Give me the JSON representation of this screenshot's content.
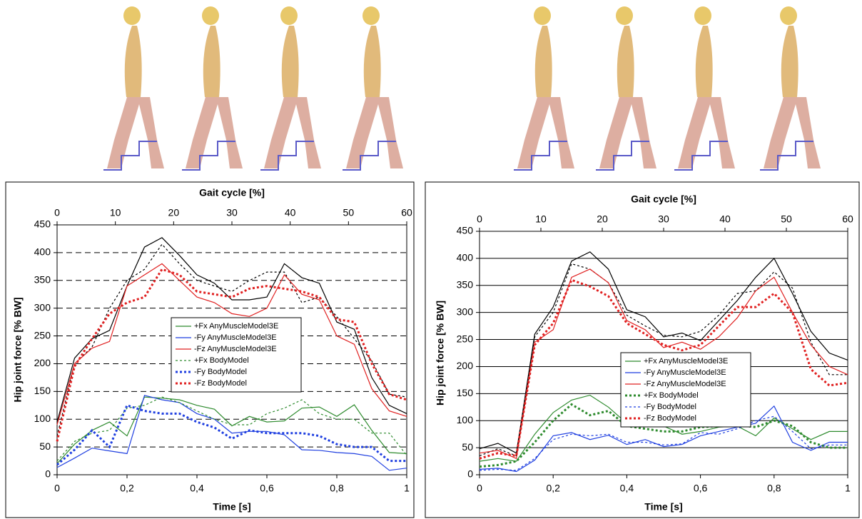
{
  "chart_data": [
    {
      "type": "line",
      "title": "Gait cycle [%]",
      "xlabel": "Time [s]",
      "ylabel": "Hip joint force [% BW]",
      "x": [
        0,
        0.05,
        0.1,
        0.15,
        0.2,
        0.25,
        0.3,
        0.35,
        0.4,
        0.45,
        0.5,
        0.55,
        0.6,
        0.65,
        0.7,
        0.75,
        0.8,
        0.85,
        0.9,
        0.95,
        1
      ],
      "xlim": [
        0,
        1
      ],
      "xticks": [
        0,
        {
          "value": 0.2,
          "label": "0,2"
        },
        {
          "value": 0.4,
          "label": "0,4"
        },
        {
          "value": 0.6,
          "label": "0,6"
        },
        {
          "value": 0.8,
          "label": "0,8"
        },
        1
      ],
      "x2lim": [
        0,
        60
      ],
      "x2ticks": [
        0,
        10,
        20,
        30,
        40,
        50,
        60
      ],
      "ylim": [
        0,
        450
      ],
      "yticks": [
        0,
        50,
        100,
        150,
        200,
        250,
        300,
        350,
        400,
        450
      ],
      "grid": "dashed",
      "legend": "center",
      "series": [
        {
          "color": "#000000",
          "dash": "solid",
          "values": [
            95,
            210,
            245,
            260,
            340,
            410,
            427,
            395,
            360,
            345,
            315,
            315,
            320,
            380,
            355,
            345,
            275,
            262,
            175,
            125,
            110
          ]
        },
        {
          "color": "#000000",
          "dash": "dotted",
          "values": [
            70,
            200,
            230,
            300,
            350,
            370,
            415,
            380,
            350,
            340,
            330,
            350,
            365,
            365,
            310,
            320,
            285,
            245,
            205,
            145,
            140
          ]
        },
        {
          "name": "+Fx AnyMuscleModel3E",
          "color": "#2e8b2e",
          "dash": "solid",
          "values": [
            20,
            55,
            80,
            95,
            70,
            140,
            138,
            135,
            125,
            118,
            88,
            105,
            95,
            97,
            120,
            122,
            105,
            126,
            80,
            40,
            38
          ]
        },
        {
          "name": "-Fy AnyMuscleModel3E",
          "color": "#1f3fe0",
          "dash": "solid",
          "values": [
            13,
            30,
            48,
            43,
            38,
            143,
            135,
            130,
            110,
            100,
            75,
            78,
            78,
            72,
            45,
            44,
            40,
            38,
            33,
            8,
            12
          ]
        },
        {
          "name": "-Fz AnyMuscleModel3E",
          "color": "#e02020",
          "dash": "solid",
          "values": [
            90,
            200,
            228,
            240,
            340,
            360,
            380,
            350,
            320,
            310,
            290,
            285,
            300,
            360,
            325,
            315,
            250,
            235,
            155,
            115,
            105
          ]
        },
        {
          "name": "+Fx BodyModel",
          "color": "#2e8b2e",
          "dash": "dotted",
          "values": [
            25,
            60,
            75,
            80,
            120,
            125,
            140,
            130,
            115,
            100,
            90,
            90,
            110,
            120,
            135,
            110,
            100,
            100,
            75,
            75,
            35
          ]
        },
        {
          "name": "-Fy BodyModel",
          "color": "#1f3fe0",
          "dash": "bold-dotted",
          "values": [
            18,
            45,
            80,
            50,
            125,
            115,
            110,
            110,
            95,
            85,
            65,
            80,
            75,
            75,
            75,
            70,
            55,
            50,
            50,
            25,
            25
          ]
        },
        {
          "name": "-Fz BodyModel",
          "color": "#e02020",
          "dash": "bold-dotted",
          "values": [
            60,
            195,
            245,
            290,
            310,
            320,
            370,
            360,
            330,
            325,
            320,
            335,
            340,
            335,
            330,
            320,
            280,
            275,
            200,
            145,
            135
          ]
        }
      ]
    },
    {
      "type": "line",
      "title": "Gait cycle [%]",
      "xlabel": "Time [s]",
      "ylabel": "Hip joint force [% BW]",
      "x": [
        0,
        0.05,
        0.1,
        0.15,
        0.2,
        0.25,
        0.3,
        0.35,
        0.4,
        0.45,
        0.5,
        0.55,
        0.6,
        0.65,
        0.7,
        0.75,
        0.8,
        0.85,
        0.9,
        0.95,
        1
      ],
      "xlim": [
        0,
        1
      ],
      "xticks": [
        0,
        {
          "value": 0.2,
          "label": "0,2"
        },
        {
          "value": 0.4,
          "label": "0,4"
        },
        {
          "value": 0.6,
          "label": "0,6"
        },
        {
          "value": 0.8,
          "label": "0,8"
        },
        1
      ],
      "x2lim": [
        0,
        60
      ],
      "x2ticks": [
        0,
        10,
        20,
        30,
        40,
        50,
        60
      ],
      "ylim": [
        0,
        450
      ],
      "yticks": [
        0,
        50,
        100,
        150,
        200,
        250,
        300,
        350,
        400,
        450
      ],
      "grid": "solid",
      "legend": "lower-right",
      "series": [
        {
          "color": "#000000",
          "dash": "solid",
          "values": [
            48,
            58,
            40,
            260,
            310,
            395,
            412,
            380,
            305,
            292,
            255,
            262,
            248,
            285,
            322,
            365,
            400,
            335,
            265,
            225,
            212
          ]
        },
        {
          "color": "#000000",
          "dash": "dotted",
          "values": [
            35,
            48,
            35,
            255,
            300,
            390,
            380,
            355,
            295,
            275,
            258,
            255,
            265,
            295,
            335,
            340,
            375,
            345,
            245,
            185,
            185
          ]
        },
        {
          "name": "+Fx AnyMuscleModel3E",
          "color": "#2e8b2e",
          "dash": "solid",
          "values": [
            25,
            30,
            25,
            75,
            115,
            138,
            147,
            125,
            95,
            92,
            90,
            75,
            80,
            88,
            90,
            72,
            105,
            85,
            65,
            80,
            80
          ]
        },
        {
          "name": "-Fy AnyMuscleModel3E",
          "color": "#1f3fe0",
          "dash": "solid",
          "values": [
            10,
            12,
            6,
            27,
            72,
            78,
            65,
            73,
            56,
            65,
            52,
            56,
            72,
            80,
            88,
            95,
            127,
            60,
            45,
            60,
            60
          ]
        },
        {
          "name": "-Fz AnyMuscleModel3E",
          "color": "#e02020",
          "dash": "solid",
          "values": [
            40,
            45,
            30,
            245,
            268,
            365,
            380,
            355,
            285,
            268,
            235,
            245,
            232,
            255,
            290,
            340,
            365,
            300,
            240,
            200,
            185
          ]
        },
        {
          "name": "+Fx BodyModel",
          "color": "#2e8b2e",
          "dash": "bold-dotted",
          "values": [
            15,
            18,
            25,
            60,
            100,
            130,
            110,
            118,
            90,
            85,
            80,
            80,
            88,
            90,
            92,
            88,
            100,
            90,
            60,
            50,
            50
          ]
        },
        {
          "name": "-Fy BodyModel",
          "color": "#1f3fe0",
          "dash": "dotted",
          "values": [
            8,
            10,
            8,
            30,
            65,
            75,
            72,
            75,
            60,
            60,
            55,
            57,
            78,
            75,
            85,
            100,
            108,
            80,
            48,
            55,
            55
          ]
        },
        {
          "name": "-Fz BodyModel",
          "color": "#e02020",
          "dash": "bold-dotted",
          "values": [
            30,
            40,
            35,
            240,
            280,
            360,
            348,
            330,
            280,
            260,
            240,
            230,
            240,
            275,
            310,
            310,
            335,
            300,
            195,
            165,
            170
          ]
        }
      ]
    }
  ]
}
